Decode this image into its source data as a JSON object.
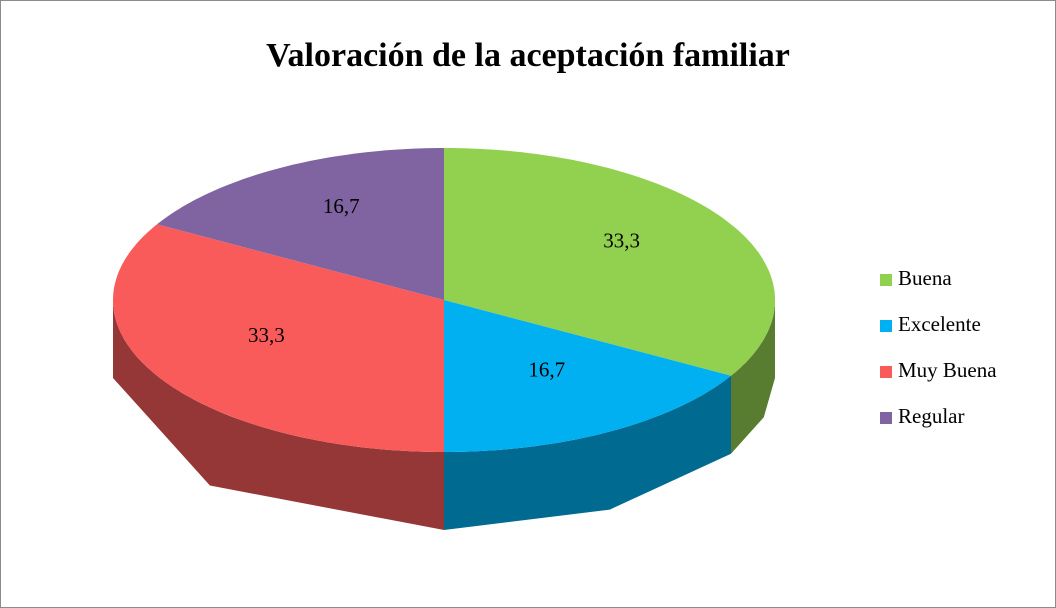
{
  "chart_data": {
    "type": "pie3d",
    "title": "Valoración de la aceptación familiar",
    "categories": [
      "Buena",
      "Excelente",
      "Muy Buena",
      "Regular"
    ],
    "values": [
      33.3,
      16.7,
      33.3,
      16.7
    ],
    "value_labels": [
      "33,3",
      "16,7",
      "33,3",
      "16,7"
    ],
    "colors": [
      "#92d050",
      "#00b0f0",
      "#f95b5b",
      "#8064a2"
    ],
    "legend": "right"
  }
}
